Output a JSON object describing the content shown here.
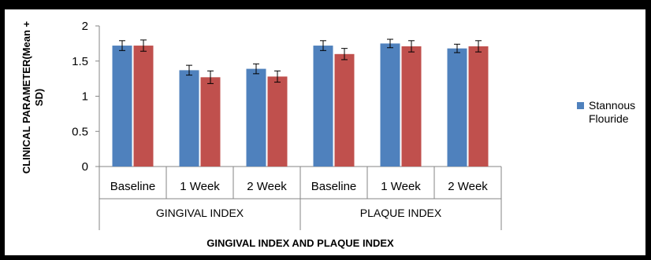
{
  "chart_data": {
    "type": "bar",
    "title": "",
    "xlabel": "GINGIVAL INDEX AND PLAQUE INDEX",
    "ylabel": "CLINICAL PARAMETER(Mean + SD)",
    "ylim": [
      0,
      2
    ],
    "yticks": [
      "0",
      "0.5",
      "1",
      "1.5",
      "2"
    ],
    "groups": [
      {
        "label": "GINGIVAL INDEX",
        "categories": [
          "Baseline",
          "1 Week",
          "2 Week"
        ]
      },
      {
        "label": "PLAQUE INDEX",
        "categories": [
          "Baseline",
          "1 Week",
          "2 Week"
        ]
      }
    ],
    "categories": [
      "Baseline",
      "1 Week",
      "2 Week",
      "Baseline",
      "1 Week",
      "2 Week"
    ],
    "series": [
      {
        "name": "Stannous Flouride",
        "color": "#4f81bd",
        "values": [
          1.72,
          1.37,
          1.39,
          1.72,
          1.75,
          1.68
        ],
        "errors": [
          0.07,
          0.07,
          0.07,
          0.07,
          0.06,
          0.06
        ]
      },
      {
        "color": "#c0504d",
        "values": [
          1.72,
          1.27,
          1.28,
          1.6,
          1.71,
          1.71
        ],
        "errors": [
          0.08,
          0.09,
          0.08,
          0.08,
          0.08,
          0.08
        ]
      }
    ],
    "legend": {
      "position": "right",
      "entries": [
        "Stannous",
        "Flouride"
      ]
    },
    "grid": false
  }
}
